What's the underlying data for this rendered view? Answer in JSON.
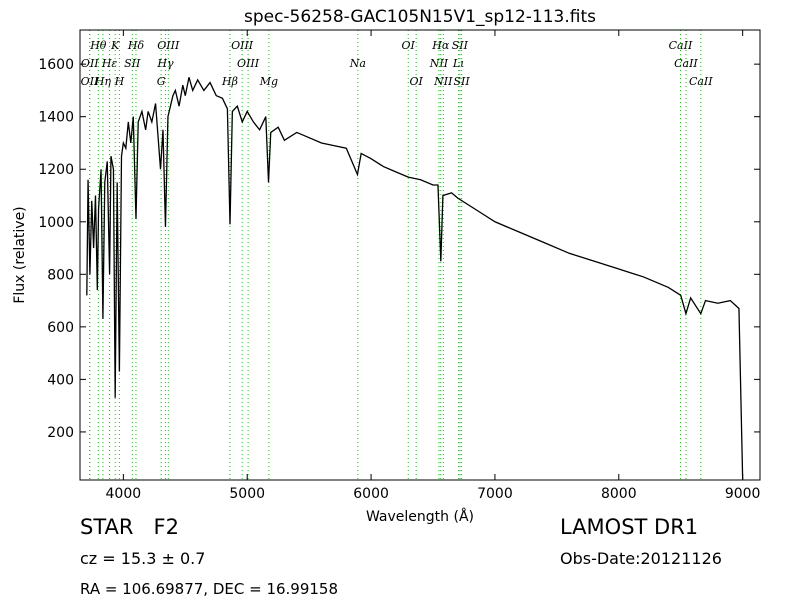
{
  "chart_data": {
    "type": "line",
    "title": "spec-56258-GAC105N15V1_sp12-113.fits",
    "x_label": "Wavelength (Å)",
    "y_label": "Flux (relative)",
    "xlim": [
      3650,
      9140
    ],
    "ylim": [
      17,
      1730
    ],
    "xticks": [
      4000,
      5000,
      6000,
      7000,
      8000,
      9000
    ],
    "yticks": [
      200,
      400,
      600,
      800,
      1000,
      1200,
      1400,
      1600
    ],
    "grid": false,
    "color": "#000000",
    "line_color": "#33aa33",
    "x": [
      3705,
      3715,
      3730,
      3745,
      3760,
      3775,
      3790,
      3800,
      3820,
      3835,
      3850,
      3870,
      3889,
      3900,
      3920,
      3934,
      3950,
      3968,
      3985,
      4000,
      4020,
      4040,
      4060,
      4080,
      4102,
      4120,
      4150,
      4180,
      4200,
      4230,
      4260,
      4300,
      4320,
      4340,
      4360,
      4400,
      4420,
      4450,
      4480,
      4500,
      4530,
      4560,
      4600,
      4650,
      4700,
      4750,
      4800,
      4840,
      4861,
      4880,
      4920,
      4960,
      5000,
      5050,
      5100,
      5150,
      5172,
      5190,
      5250,
      5300,
      5400,
      5500,
      5600,
      5700,
      5800,
      5890,
      5920,
      6000,
      6100,
      6200,
      6300,
      6400,
      6500,
      6540,
      6563,
      6580,
      6650,
      6700,
      6800,
      6900,
      7000,
      7200,
      7400,
      7600,
      7800,
      8000,
      8200,
      8400,
      8500,
      8542,
      8580,
      8662,
      8700,
      8800,
      8900,
      8970,
      9000
    ],
    "values": [
      720,
      1160,
      800,
      1080,
      900,
      1100,
      740,
      1050,
      1200,
      630,
      1150,
      1230,
      800,
      1250,
      1200,
      330,
      1150,
      430,
      1250,
      1300,
      1280,
      1380,
      1300,
      1400,
      1010,
      1380,
      1420,
      1350,
      1420,
      1380,
      1450,
      1200,
      1350,
      980,
      1400,
      1480,
      1500,
      1440,
      1520,
      1480,
      1550,
      1500,
      1540,
      1500,
      1530,
      1480,
      1470,
      1430,
      990,
      1420,
      1440,
      1380,
      1420,
      1380,
      1350,
      1400,
      1150,
      1340,
      1360,
      1310,
      1340,
      1320,
      1300,
      1290,
      1280,
      1180,
      1260,
      1240,
      1210,
      1190,
      1170,
      1160,
      1140,
      1140,
      850,
      1100,
      1110,
      1090,
      1060,
      1030,
      1000,
      960,
      920,
      880,
      850,
      820,
      790,
      750,
      720,
      650,
      710,
      650,
      700,
      690,
      700,
      670,
      20
    ],
    "lines": [
      {
        "label": "OII",
        "wavelength": 3727
      },
      {
        "label": "OII",
        "wavelength": 3729
      },
      {
        "label": "Hθ",
        "wavelength": 3798
      },
      {
        "label": "Hη",
        "wavelength": 3835
      },
      {
        "label": "Hε",
        "wavelength": 3889
      },
      {
        "label": "K",
        "wavelength": 3934
      },
      {
        "label": "H",
        "wavelength": 3968
      },
      {
        "label": "SII",
        "wavelength": 4072
      },
      {
        "label": "Hδ",
        "wavelength": 4102
      },
      {
        "label": "G",
        "wavelength": 4305
      },
      {
        "label": "Hγ",
        "wavelength": 4340
      },
      {
        "label": "OIII",
        "wavelength": 4363
      },
      {
        "label": "Hβ",
        "wavelength": 4861
      },
      {
        "label": "OIII",
        "wavelength": 4959
      },
      {
        "label": "OIII",
        "wavelength": 5007
      },
      {
        "label": "Mg",
        "wavelength": 5175
      },
      {
        "label": "Na",
        "wavelength": 5893
      },
      {
        "label": "OI",
        "wavelength": 6300
      },
      {
        "label": "OI",
        "wavelength": 6364
      },
      {
        "label": "NII",
        "wavelength": 6548
      },
      {
        "label": "Hα",
        "wavelength": 6563
      },
      {
        "label": "NII",
        "wavelength": 6583
      },
      {
        "label": "Lι",
        "wavelength": 6707
      },
      {
        "label": "SII",
        "wavelength": 6717
      },
      {
        "label": "SII",
        "wavelength": 6731
      },
      {
        "label": "CaII",
        "wavelength": 8498
      },
      {
        "label": "CaII",
        "wavelength": 8542
      },
      {
        "label": "CaII",
        "wavelength": 8662
      }
    ],
    "annotations": {
      "object": "STAR   F2",
      "cz": "cz = 15.3 ± 0.7",
      "coords": "RA = 106.69877, DEC = 16.99158",
      "survey": "LAMOST DR1",
      "date": "Obs-Date:20121126"
    }
  }
}
